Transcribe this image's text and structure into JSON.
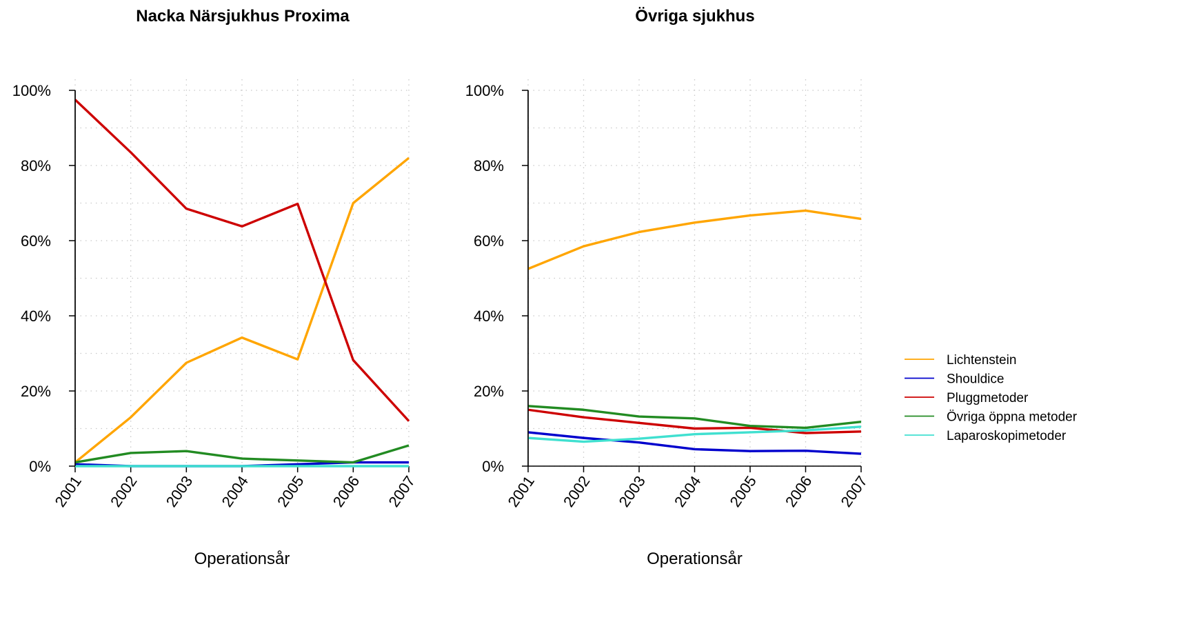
{
  "chart_data": [
    {
      "type": "line",
      "title": "Nacka Närsjukhus Proxima",
      "xlabel": "Operationsår",
      "ylabel": "",
      "ylim": [
        0,
        100
      ],
      "yticks": [
        0,
        20,
        40,
        60,
        80,
        100
      ],
      "ytick_labels": [
        "0%",
        "20%",
        "40%",
        "60%",
        "80%",
        "100%"
      ],
      "x": [
        "2001",
        "2002",
        "2003",
        "2004",
        "2005",
        "2006",
        "2007"
      ],
      "grid": true,
      "series": [
        {
          "name": "Lichtenstein",
          "color": "#FFA500",
          "values": [
            1,
            13,
            27.5,
            34.2,
            28.4,
            70,
            82
          ]
        },
        {
          "name": "Shouldice",
          "color": "#0000CD",
          "values": [
            0.5,
            0,
            0,
            0,
            0.5,
            1,
            1
          ]
        },
        {
          "name": "Pluggmetoder",
          "color": "#CD0000",
          "values": [
            97.5,
            83.5,
            68.5,
            63.8,
            69.8,
            28.2,
            12
          ]
        },
        {
          "name": "Övriga öppna metoder",
          "color": "#228B22",
          "values": [
            1,
            3.5,
            4,
            2,
            1.5,
            1,
            5.5
          ]
        },
        {
          "name": "Laparoskopimetoder",
          "color": "#40E0D0",
          "values": [
            0,
            0,
            0,
            0,
            0,
            0,
            0
          ]
        }
      ]
    },
    {
      "type": "line",
      "title": "Övriga sjukhus",
      "xlabel": "Operationsår",
      "ylabel": "",
      "ylim": [
        0,
        100
      ],
      "yticks": [
        0,
        20,
        40,
        60,
        80,
        100
      ],
      "ytick_labels": [
        "0%",
        "20%",
        "40%",
        "60%",
        "80%",
        "100%"
      ],
      "x": [
        "2001",
        "2002",
        "2003",
        "2004",
        "2005",
        "2006",
        "2007"
      ],
      "grid": true,
      "series": [
        {
          "name": "Lichtenstein",
          "color": "#FFA500",
          "values": [
            52.5,
            58.5,
            62.3,
            64.8,
            66.7,
            68,
            65.8
          ]
        },
        {
          "name": "Shouldice",
          "color": "#0000CD",
          "values": [
            9,
            7.5,
            6.3,
            4.5,
            4,
            4.1,
            3.3
          ]
        },
        {
          "name": "Pluggmetoder",
          "color": "#CD0000",
          "values": [
            15,
            13,
            11.5,
            10,
            10.2,
            8.8,
            9.2
          ]
        },
        {
          "name": "Övriga öppna metoder",
          "color": "#228B22",
          "values": [
            16,
            15,
            13.2,
            12.7,
            10.7,
            10.2,
            11.8
          ]
        },
        {
          "name": "Laparoskopimetoder",
          "color": "#40E0D0",
          "values": [
            7.5,
            6.5,
            7.3,
            8.5,
            9,
            9.5,
            10.5
          ]
        }
      ]
    }
  ],
  "legend": {
    "placement": "right",
    "items": [
      {
        "label": "Lichtenstein",
        "color": "#FFA500"
      },
      {
        "label": "Shouldice",
        "color": "#0000CD"
      },
      {
        "label": "Pluggmetoder",
        "color": "#CD0000"
      },
      {
        "label": "Övriga öppna metoder",
        "color": "#228B22"
      },
      {
        "label": "Laparoskopimetoder",
        "color": "#40E0D0"
      }
    ]
  }
}
